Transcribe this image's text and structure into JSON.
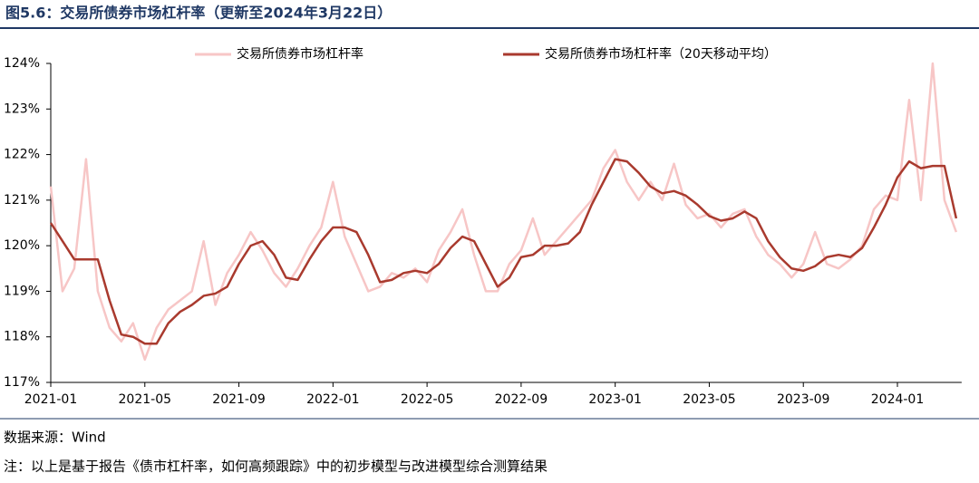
{
  "chart_data": {
    "type": "line",
    "title": "图5.6：交易所债券市场杠杆率（更新至2024年3月22日）",
    "source": "数据来源：Wind",
    "note": "注：以上是基于报告《债市杠杆率，如何高频跟踪》中的初步模型与改进模型综合测算结果",
    "categories": [
      "2021-01",
      null,
      null,
      null,
      null,
      null,
      null,
      null,
      "2021-05",
      null,
      null,
      null,
      null,
      null,
      null,
      null,
      "2021-09",
      null,
      null,
      null,
      null,
      null,
      null,
      null,
      "2022-01",
      null,
      null,
      null,
      null,
      null,
      null,
      null,
      "2022-05",
      null,
      null,
      null,
      null,
      null,
      null,
      null,
      "2022-09",
      null,
      null,
      null,
      null,
      null,
      null,
      null,
      "2023-01",
      null,
      null,
      null,
      null,
      null,
      null,
      null,
      "2023-05",
      null,
      null,
      null,
      null,
      null,
      null,
      null,
      "2023-09",
      null,
      null,
      null,
      null,
      null,
      null,
      null,
      "2024-01",
      null,
      null,
      null,
      null,
      null
    ],
    "series": [
      {
        "name": "交易所债券市场杠杆率",
        "color": "#f7c6c6",
        "width": 2.5,
        "values": [
          121.3,
          119.0,
          119.5,
          121.9,
          119.0,
          118.2,
          117.9,
          118.3,
          117.5,
          118.2,
          118.6,
          118.8,
          119.0,
          120.1,
          118.7,
          119.4,
          119.8,
          120.3,
          119.9,
          119.4,
          119.1,
          119.5,
          120.0,
          120.4,
          121.4,
          120.2,
          119.6,
          119.0,
          119.1,
          119.4,
          119.3,
          119.5,
          119.2,
          119.9,
          120.3,
          120.8,
          119.8,
          119.0,
          119.0,
          119.6,
          119.9,
          120.6,
          119.8,
          120.1,
          120.4,
          120.7,
          121.0,
          121.7,
          122.1,
          121.4,
          121.0,
          121.4,
          121.0,
          121.8,
          120.9,
          120.6,
          120.7,
          120.4,
          120.7,
          120.8,
          120.2,
          119.8,
          119.6,
          119.3,
          119.6,
          120.3,
          119.6,
          119.5,
          119.7,
          120.0,
          120.8,
          121.1,
          121.0,
          123.2,
          121.0,
          124.0,
          121.0,
          120.3
        ]
      },
      {
        "name": "交易所债券市场杠杆率（20天移动平均）",
        "color": "#a93a2e",
        "width": 2.5,
        "values": [
          120.5,
          120.1,
          119.7,
          119.7,
          119.7,
          118.8,
          118.05,
          118.0,
          117.85,
          117.85,
          118.3,
          118.55,
          118.7,
          118.9,
          118.95,
          119.1,
          119.6,
          120.0,
          120.1,
          119.8,
          119.3,
          119.25,
          119.7,
          120.1,
          120.4,
          120.4,
          120.3,
          119.8,
          119.2,
          119.25,
          119.4,
          119.45,
          119.4,
          119.6,
          119.95,
          120.2,
          120.1,
          119.6,
          119.1,
          119.3,
          119.75,
          119.8,
          120.0,
          120.0,
          120.05,
          120.3,
          120.9,
          121.4,
          121.9,
          121.85,
          121.6,
          121.3,
          121.15,
          121.2,
          121.1,
          120.9,
          120.65,
          120.55,
          120.6,
          120.75,
          120.6,
          120.1,
          119.75,
          119.5,
          119.45,
          119.55,
          119.75,
          119.8,
          119.75,
          119.95,
          120.4,
          120.9,
          121.5,
          121.85,
          121.7,
          121.75,
          121.75,
          120.6
        ]
      }
    ],
    "ylim": [
      117,
      124
    ],
    "yticks": [
      {
        "value": 117,
        "label": "117%"
      },
      {
        "value": 118,
        "label": "118%"
      },
      {
        "value": 119,
        "label": "119%"
      },
      {
        "value": 120,
        "label": "120%"
      },
      {
        "value": 121,
        "label": "121%"
      },
      {
        "value": 122,
        "label": "122%"
      },
      {
        "value": 123,
        "label": "123%"
      },
      {
        "value": 124,
        "label": "124%"
      }
    ],
    "legend": "top"
  }
}
